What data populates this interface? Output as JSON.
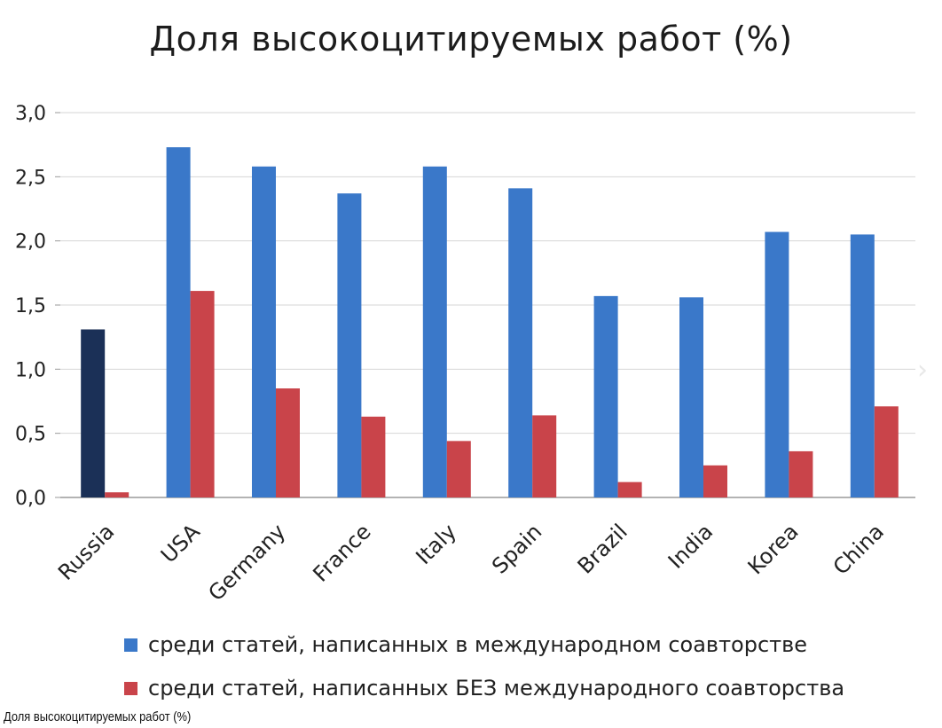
{
  "chart_data": {
    "type": "bar",
    "title": "Доля высокоцитируемых работ (%)",
    "xlabel": "",
    "ylabel": "",
    "categories": [
      "Russia",
      "USA",
      "Germany",
      "France",
      "Italy",
      "Spain",
      "Brazil",
      "India",
      "Korea",
      "China"
    ],
    "series": [
      {
        "name": "среди статей, написанных в международном соавторстве",
        "values": [
          1.31,
          2.73,
          2.58,
          2.37,
          2.58,
          2.41,
          1.57,
          1.56,
          2.07,
          2.05
        ],
        "color": "#3a78c9",
        "highlight": {
          "index": 0,
          "color": "#1b3057"
        }
      },
      {
        "name": "среди статей, написанных БЕЗ международного соавторства",
        "values": [
          0.04,
          1.61,
          0.85,
          0.63,
          0.44,
          0.64,
          0.12,
          0.25,
          0.36,
          0.71
        ],
        "color": "#c9444a"
      }
    ],
    "ylim": [
      0,
      3.0
    ],
    "yticks": [
      "0,0",
      "0,5",
      "1,0",
      "1,5",
      "2,0",
      "2,5",
      "3,0"
    ],
    "grid": true,
    "legend_position": "bottom"
  },
  "caption": "Доля высокоцитируемых работ (%)",
  "nav_arrow_icon": "chevron-right-icon"
}
